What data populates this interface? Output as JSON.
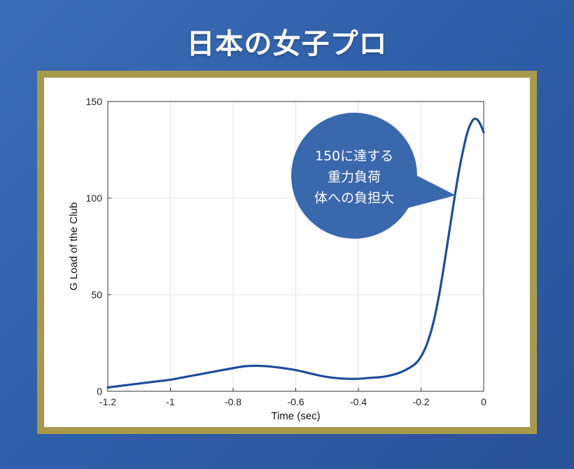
{
  "title": "日本の女子プロ",
  "colors": {
    "frame": "#a89a4c",
    "line": "#1f4b99",
    "callout": "#3a68ad"
  },
  "chart_data": {
    "type": "line",
    "xlabel": "Time (sec)",
    "ylabel": "G Load of the Club",
    "xlim": [
      -1.2,
      0
    ],
    "ylim": [
      0,
      150
    ],
    "xticks": [
      -1.2,
      -1,
      -0.8,
      -0.6,
      -0.4,
      -0.2,
      0
    ],
    "xtick_labels": [
      "-1.2",
      "-1",
      "-0.8",
      "-0.6",
      "-0.4",
      "-0.2",
      "0"
    ],
    "yticks": [
      0,
      50,
      100,
      150
    ],
    "ytick_labels": [
      "0",
      "50",
      "100",
      "150"
    ],
    "grid": true,
    "series": [
      {
        "x": [
          -1.2,
          -1.15,
          -1.1,
          -1.05,
          -1.0,
          -0.95,
          -0.9,
          -0.85,
          -0.8,
          -0.76,
          -0.72,
          -0.68,
          -0.64,
          -0.6,
          -0.56,
          -0.52,
          -0.48,
          -0.44,
          -0.4,
          -0.36,
          -0.32,
          -0.28,
          -0.25,
          -0.22,
          -0.2,
          -0.18,
          -0.16,
          -0.14,
          -0.12,
          -0.1,
          -0.08,
          -0.06,
          -0.05,
          -0.04,
          -0.03,
          -0.02,
          -0.01,
          0
        ],
        "y": [
          2,
          3,
          4,
          5,
          6,
          7.5,
          9,
          10.5,
          12,
          13,
          13.2,
          12.8,
          12,
          11,
          9.5,
          8,
          7,
          6.5,
          6.5,
          7,
          7.5,
          9,
          11,
          14,
          18,
          25,
          36,
          52,
          72,
          93,
          113,
          129,
          135,
          139,
          141,
          140.5,
          138,
          134
        ]
      }
    ],
    "annotations": [
      {
        "lines": [
          "150に達する",
          "重力負荷",
          "体への負担大"
        ]
      }
    ]
  }
}
